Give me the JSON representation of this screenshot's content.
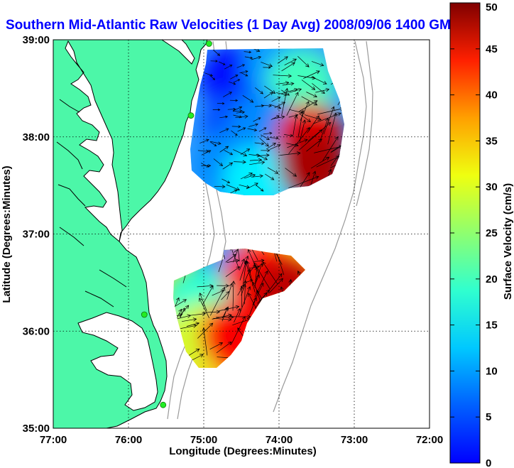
{
  "title": "Southern Mid-Atlantic Raw Velocities (1 Day Avg) 2008/09/06 1400 GMT",
  "map": {
    "xlabel": "Longitude (Degrees:Minutes)",
    "ylabel": "Latitude (Degrees:Minutes)",
    "xlim": [
      -77,
      -72
    ],
    "ylim": [
      35,
      39
    ],
    "x_ticks": [
      {
        "value": -77,
        "label": "77:00"
      },
      {
        "value": -76,
        "label": "76:00"
      },
      {
        "value": -75,
        "label": "75:00"
      },
      {
        "value": -74,
        "label": "74:00"
      },
      {
        "value": -73,
        "label": "73:00"
      },
      {
        "value": -72,
        "label": "72:00"
      }
    ],
    "y_ticks": [
      {
        "value": 35,
        "label": "35:00"
      },
      {
        "value": 36,
        "label": "36:00"
      },
      {
        "value": 37,
        "label": "37:00"
      },
      {
        "value": 38,
        "label": "38:00"
      },
      {
        "value": 39,
        "label": "39:00"
      }
    ],
    "grid": "dotted",
    "land_color": "#4cf7a8",
    "water_color": "#ffffff",
    "coastline_color": "#000000",
    "bathymetry_color": "#9a9a9a",
    "station_color": "#22ee22"
  },
  "colorbar": {
    "label": "Surface Velocity (cm/s)",
    "min": 0,
    "max": 50,
    "ticks": [
      0,
      5,
      10,
      15,
      20,
      25,
      30,
      35,
      40,
      45,
      50
    ],
    "colormap": "jet"
  },
  "chart_data": {
    "type": "heatmap",
    "title": "Southern Mid-Atlantic Raw Velocities (1 Day Avg) 2008/09/06 1400 GMT",
    "xlabel": "Longitude (Degrees:Minutes)",
    "ylabel": "Latitude (Degrees:Minutes)",
    "xlim": [
      -77,
      -72
    ],
    "ylim": [
      35,
      39
    ],
    "color_range": [
      0,
      50
    ],
    "units": "cm/s",
    "regions": [
      {
        "name": "northern",
        "cells": [
          {
            "lon": -74.6,
            "lat": 38.6,
            "speed": 7
          },
          {
            "lon": -74.0,
            "lat": 38.7,
            "speed": 14
          },
          {
            "lon": -73.7,
            "lat": 38.55,
            "speed": 22
          },
          {
            "lon": -74.6,
            "lat": 38.1,
            "speed": 10
          },
          {
            "lon": -74.2,
            "lat": 38.1,
            "speed": 13
          },
          {
            "lon": -74.7,
            "lat": 37.7,
            "speed": 13
          },
          {
            "lon": -74.3,
            "lat": 37.55,
            "speed": 18
          },
          {
            "lon": -73.6,
            "lat": 38.0,
            "speed": 45
          },
          {
            "lon": -73.55,
            "lat": 37.7,
            "speed": 48
          }
        ]
      },
      {
        "name": "southern",
        "cells": [
          {
            "lon": -74.7,
            "lat": 36.65,
            "speed": 14
          },
          {
            "lon": -74.3,
            "lat": 36.55,
            "speed": 43
          },
          {
            "lon": -73.9,
            "lat": 36.4,
            "speed": 47
          },
          {
            "lon": -75.1,
            "lat": 36.3,
            "speed": 21
          },
          {
            "lon": -75.0,
            "lat": 35.95,
            "speed": 29
          },
          {
            "lon": -74.6,
            "lat": 35.95,
            "speed": 44
          }
        ]
      }
    ],
    "stations": [
      {
        "lon": -74.93,
        "lat": 38.96
      },
      {
        "lon": -75.17,
        "lat": 38.22
      },
      {
        "lon": -75.79,
        "lat": 36.17
      },
      {
        "lon": -75.54,
        "lat": 35.24
      }
    ]
  }
}
